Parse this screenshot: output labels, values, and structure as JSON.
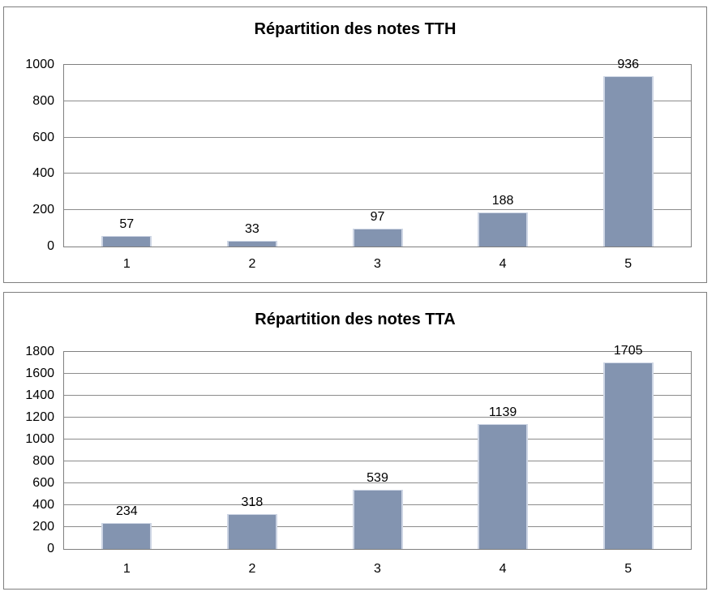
{
  "page": {
    "background": "#FFFFFF"
  },
  "colors": {
    "bar": "#8394B0",
    "bar_edge": "#CDD5E4",
    "gridline": "#8C8C8C",
    "plot_border": "#808080",
    "panel_border": "#7F7F7F",
    "text": "#000000"
  },
  "chart_data": [
    {
      "type": "bar",
      "title": "Répartition des notes TTH",
      "categories": [
        "1",
        "2",
        "3",
        "4",
        "5"
      ],
      "values": [
        57,
        33,
        97,
        188,
        936
      ],
      "data_labels": [
        57,
        33,
        97,
        188,
        936
      ],
      "xlabel": "",
      "ylabel": "",
      "ylim": [
        0,
        1000
      ],
      "ytick_step": 200,
      "ytick_labels": [
        "0",
        "200",
        "400",
        "600",
        "800",
        "1000"
      ],
      "grid": true,
      "legend": false
    },
    {
      "type": "bar",
      "title": "Répartition des notes TTA",
      "categories": [
        "1",
        "2",
        "3",
        "4",
        "5"
      ],
      "values": [
        234,
        318,
        539,
        1139,
        1705
      ],
      "data_labels": [
        234,
        318,
        539,
        1139,
        1705
      ],
      "xlabel": "",
      "ylabel": "",
      "ylim": [
        0,
        1800
      ],
      "ytick_step": 200,
      "ytick_labels": [
        "0",
        "200",
        "400",
        "600",
        "800",
        "1000",
        "1200",
        "1400",
        "1600",
        "1800"
      ],
      "grid": true,
      "legend": false
    }
  ]
}
